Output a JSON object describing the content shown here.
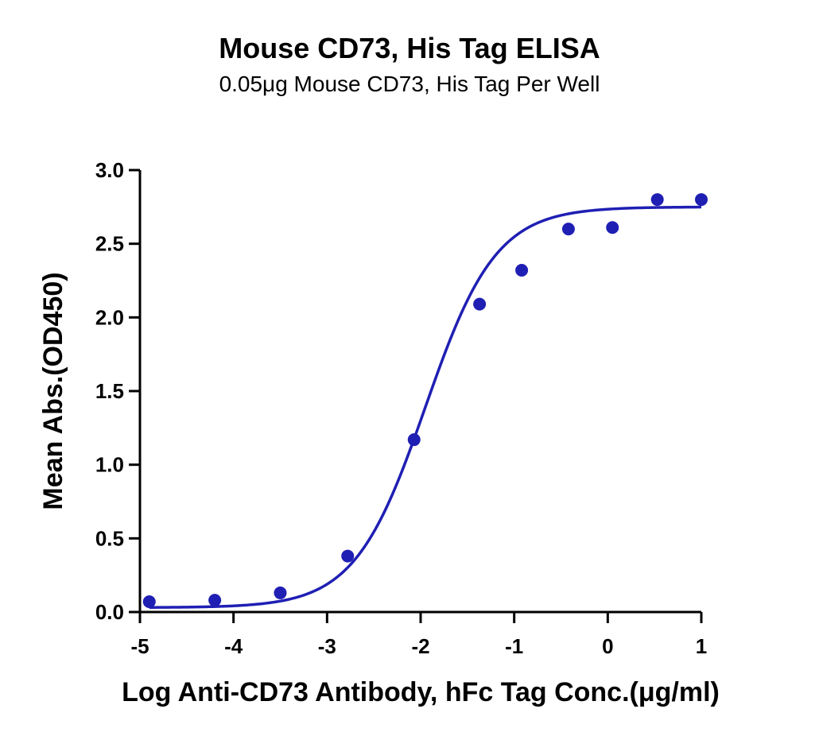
{
  "chart_data": {
    "type": "scatter",
    "title": "Mouse CD73, His Tag ELISA",
    "subtitle": "0.05μg Mouse CD73, His Tag Per Well",
    "xlabel": "Log Anti-CD73 Antibody, hFc Tag Conc.(μg/ml)",
    "ylabel": "Mean Abs.(OD450)",
    "xlim": [
      -5,
      1
    ],
    "ylim": [
      0,
      3.0
    ],
    "x_ticks": [
      -5,
      -4,
      -3,
      -2,
      -1,
      0,
      1
    ],
    "x_tick_labels": [
      "-5",
      "-4",
      "-3",
      "-2",
      "-1",
      "0",
      "1"
    ],
    "y_ticks": [
      0,
      0.5,
      1.0,
      1.5,
      2.0,
      2.5,
      3.0
    ],
    "y_tick_labels": [
      "0.0",
      "0.5",
      "1.0",
      "1.5",
      "2.0",
      "2.5",
      "3.0"
    ],
    "grid": false,
    "series": [
      {
        "color": "#1f1fb4",
        "x": [
          -4.9,
          -4.2,
          -3.5,
          -2.78,
          -2.07,
          -1.37,
          -0.92,
          -0.42,
          0.05,
          0.53,
          1.0
        ],
        "y": [
          0.07,
          0.08,
          0.13,
          0.38,
          1.17,
          2.09,
          2.32,
          2.6,
          2.61,
          2.8,
          2.8
        ]
      }
    ],
    "fit": {
      "type": "4PL",
      "bottom": 0.03,
      "top": 2.75,
      "log_ec50": -1.95,
      "hill": 1.15
    }
  }
}
